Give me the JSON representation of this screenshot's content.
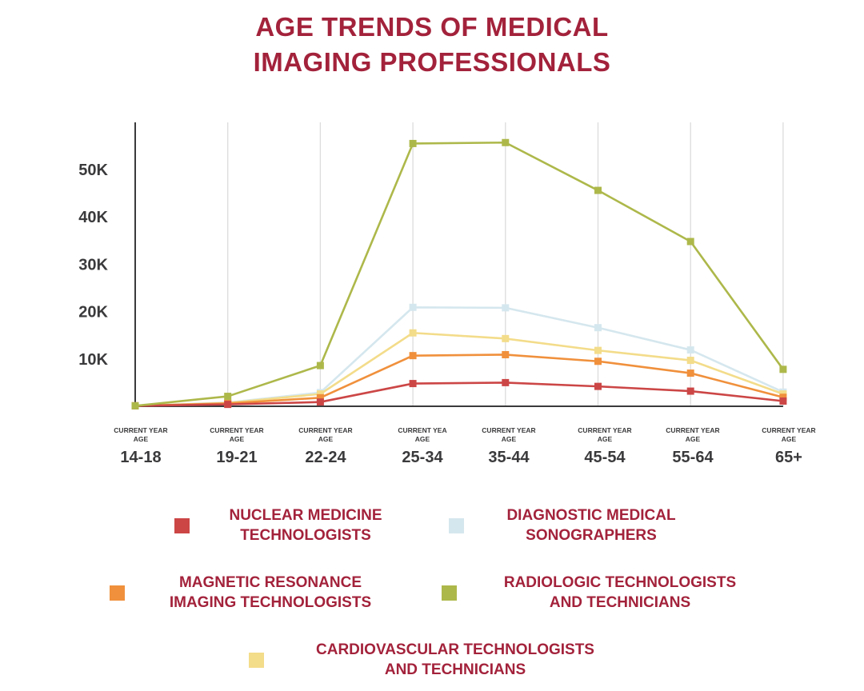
{
  "title": {
    "line1": "AGE TRENDS OF MEDICAL",
    "line2": "IMAGING PROFESSIONALS"
  },
  "chart_data": {
    "type": "line",
    "title": "AGE TRENDS OF MEDICAL IMAGING PROFESSIONALS",
    "xlabel": "",
    "ylabel": "",
    "x_sublabels": [
      "CURRENT YEAR AGE",
      "CURRENT YEAR AGE",
      "CURRENT YEAR AGE",
      "CURRENT YEA AGE",
      "CURRENT YEAR AGE",
      "CURRENT YEAR AGE",
      "CURRENT YEAR AGE",
      "CURRENT YEAR AGE"
    ],
    "x_sublabel_lines": [
      [
        "CURRENT YEAR",
        "AGE"
      ],
      [
        "CURRENT YEAR",
        "AGE"
      ],
      [
        "CURRENT YEAR",
        "AGE"
      ],
      [
        "CURRENT YEA",
        "AGE"
      ],
      [
        "CURRENT YEAR",
        "AGE"
      ],
      [
        "CURRENT YEAR",
        "AGE"
      ],
      [
        "CURRENT YEAR",
        "AGE"
      ],
      [
        "CURRENT YEAR",
        "AGE"
      ]
    ],
    "categories": [
      "14-18",
      "19-21",
      "22-24",
      "25-34",
      "35-44",
      "45-54",
      "55-64",
      "65+"
    ],
    "yticks": [
      10000,
      20000,
      30000,
      40000,
      50000
    ],
    "ytick_labels": [
      "10K",
      "20K",
      "30K",
      "40K",
      "50K"
    ],
    "ylim": [
      0,
      60000
    ],
    "grid": "vertical",
    "legend_position": "bottom",
    "series": [
      {
        "name": "NUCLEAR MEDICINE TECHNOLOGISTS",
        "color": "#cc4646",
        "values": [
          100,
          400,
          900,
          4800,
          5000,
          4200,
          3200,
          1100
        ]
      },
      {
        "name": "DIAGNOSTIC MEDICAL SONOGRAPHERS",
        "color": "#d5e7ee",
        "values": [
          100,
          800,
          2900,
          20900,
          20800,
          16600,
          11900,
          3000
        ]
      },
      {
        "name": "MAGNETIC RESONANCE IMAGING TECHNOLOGISTS",
        "color": "#f0903c",
        "values": [
          100,
          600,
          1800,
          10700,
          10900,
          9500,
          7000,
          1900
        ]
      },
      {
        "name": "RADIOLOGIC TECHNOLOGISTS AND TECHNICIANS",
        "color": "#adb84a",
        "values": [
          100,
          2100,
          8600,
          55500,
          55700,
          45600,
          34800,
          7800
        ]
      },
      {
        "name": "CARDIOVASCULAR TECHNOLOGISTS AND TECHNICIANS",
        "color": "#f3dc8a",
        "values": [
          100,
          700,
          2600,
          15500,
          14300,
          11800,
          9700,
          2600
        ]
      }
    ]
  },
  "legend": [
    {
      "line1": "NUCLEAR MEDICINE",
      "line2": "TECHNOLOGISTS",
      "color": "#cc4646"
    },
    {
      "line1": "DIAGNOSTIC MEDICAL",
      "line2": "SONOGRAPHERS",
      "color": "#d5e7ee"
    },
    {
      "line1": "MAGNETIC RESONANCE",
      "line2": "IMAGING TECHNOLOGISTS",
      "color": "#f0903c"
    },
    {
      "line1": "RADIOLOGIC TECHNOLOGISTS",
      "line2": "AND TECHNICIANS",
      "color": "#adb84a"
    },
    {
      "line1": "CARDIOVASCULAR TECHNOLOGISTS",
      "line2": "AND TECHNICIANS",
      "color": "#f3dc8a"
    }
  ]
}
